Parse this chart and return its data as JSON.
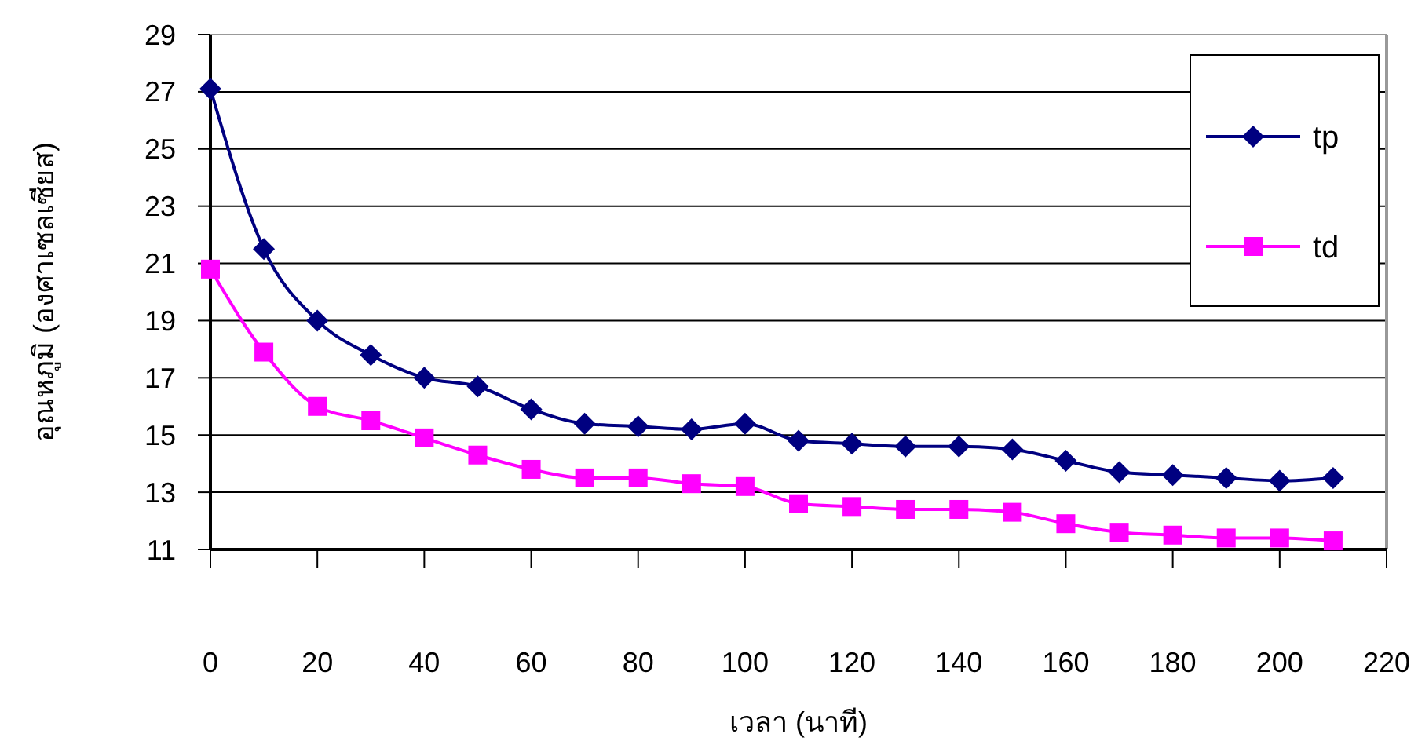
{
  "chart_data": {
    "type": "line",
    "xlabel": "เวลา (นาที)",
    "ylabel": "อุณหภูมิ (องศาเซลเซียส)",
    "x": [
      0,
      10,
      20,
      30,
      40,
      50,
      60,
      70,
      80,
      90,
      100,
      110,
      120,
      130,
      140,
      150,
      160,
      170,
      180,
      190,
      200,
      210
    ],
    "series": [
      {
        "name": "tp",
        "color": "#000080",
        "marker": "diamond",
        "values": [
          27.1,
          21.5,
          19.0,
          17.8,
          17.0,
          16.7,
          15.9,
          15.4,
          15.3,
          15.2,
          15.4,
          14.8,
          14.7,
          14.6,
          14.6,
          14.5,
          14.1,
          13.7,
          13.6,
          13.5,
          13.4,
          13.5
        ]
      },
      {
        "name": "td",
        "color": "#ff00ff",
        "marker": "square",
        "values": [
          20.8,
          17.9,
          16.0,
          15.5,
          14.9,
          14.3,
          13.8,
          13.5,
          13.5,
          13.3,
          13.2,
          12.6,
          12.5,
          12.4,
          12.4,
          12.3,
          11.9,
          11.6,
          11.5,
          11.4,
          11.4,
          11.3
        ]
      }
    ],
    "xlim": [
      0,
      220
    ],
    "xticks": [
      0,
      20,
      40,
      60,
      80,
      100,
      120,
      140,
      160,
      180,
      200,
      220
    ],
    "ylim": [
      11,
      29
    ],
    "yticks": [
      11,
      13,
      15,
      17,
      19,
      21,
      23,
      25,
      27,
      29
    ],
    "grid": "y",
    "legend": "top right",
    "line_style": "solid"
  }
}
